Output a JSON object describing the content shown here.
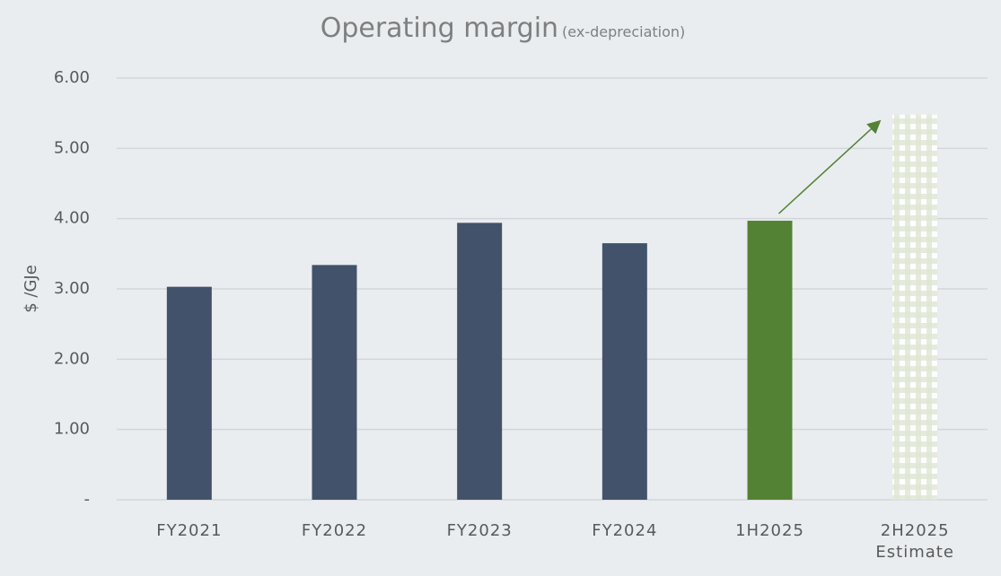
{
  "chart_data": {
    "type": "bar",
    "title": "Operating margin",
    "subtitle": "(ex-depreciation)",
    "y_label": "$ /GJe",
    "categories": [
      "FY2021",
      "FY2022",
      "FY2023",
      "FY2024",
      "1H2025",
      "2H2025\nEstimate"
    ],
    "values": [
      3.03,
      3.34,
      3.94,
      3.65,
      3.97,
      5.48
    ],
    "colors": [
      "#42526b",
      "#42526b",
      "#42526b",
      "#42526b",
      "#548235",
      "#dfe6d3"
    ],
    "styles": [
      "solid",
      "solid",
      "solid",
      "solid",
      "solid",
      "checkered"
    ],
    "ylim": [
      0,
      6
    ],
    "yticks": [
      {
        "value": 0,
        "label": "-"
      },
      {
        "value": 1,
        "label": "1.00"
      },
      {
        "value": 2,
        "label": "2.00"
      },
      {
        "value": 3,
        "label": "3.00"
      },
      {
        "value": 4,
        "label": "4.00"
      },
      {
        "value": 5,
        "label": "5.00"
      },
      {
        "value": 6,
        "label": "6.00"
      }
    ],
    "grid": true
  }
}
